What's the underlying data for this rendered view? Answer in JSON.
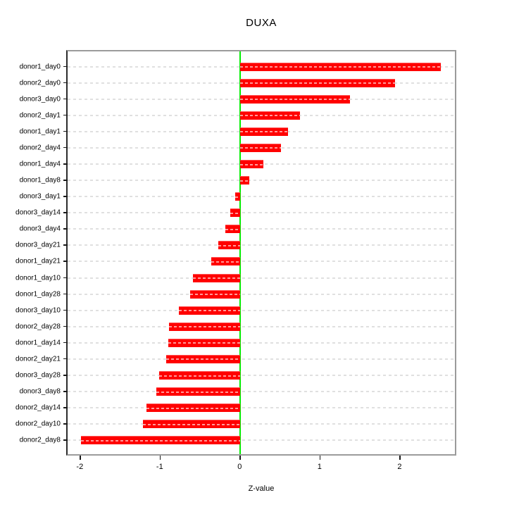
{
  "title": "DUXA",
  "x_axis": {
    "label": "Z-value",
    "ticks": [
      "-2",
      "-1",
      "0",
      "1",
      "2"
    ],
    "tick_values": [
      -2,
      -1,
      0,
      1,
      2
    ]
  },
  "colors": {
    "bar": "#ff0000",
    "zero_line": "#00ee00",
    "grid": "#dadada",
    "frame": "#9b9b9b",
    "axis": "#1a1a1a"
  },
  "chart_data": {
    "type": "bar",
    "orientation": "horizontal",
    "title": "DUXA",
    "xlabel": "Z-value",
    "ylabel": "",
    "xlim": [
      -2.17,
      2.71
    ],
    "grid": true,
    "zero_reference_line": 0,
    "categories": [
      "donor1_day0",
      "donor2_day0",
      "donor3_day0",
      "donor2_day1",
      "donor1_day1",
      "donor2_day4",
      "donor1_day4",
      "donor1_day8",
      "donor3_day1",
      "donor3_day14",
      "donor3_day4",
      "donor3_day21",
      "donor1_day21",
      "donor1_day10",
      "donor1_day28",
      "donor3_day10",
      "donor2_day28",
      "donor1_day14",
      "donor2_day21",
      "donor3_day28",
      "donor3_day8",
      "donor2_day14",
      "donor2_day10",
      "donor2_day8"
    ],
    "values": [
      2.53,
      1.96,
      1.39,
      0.76,
      0.61,
      0.52,
      0.3,
      0.12,
      -0.06,
      -0.12,
      -0.18,
      -0.27,
      -0.36,
      -0.59,
      -0.63,
      -0.77,
      -0.89,
      -0.9,
      -0.93,
      -1.02,
      -1.05,
      -1.18,
      -1.22,
      -2.0
    ]
  }
}
